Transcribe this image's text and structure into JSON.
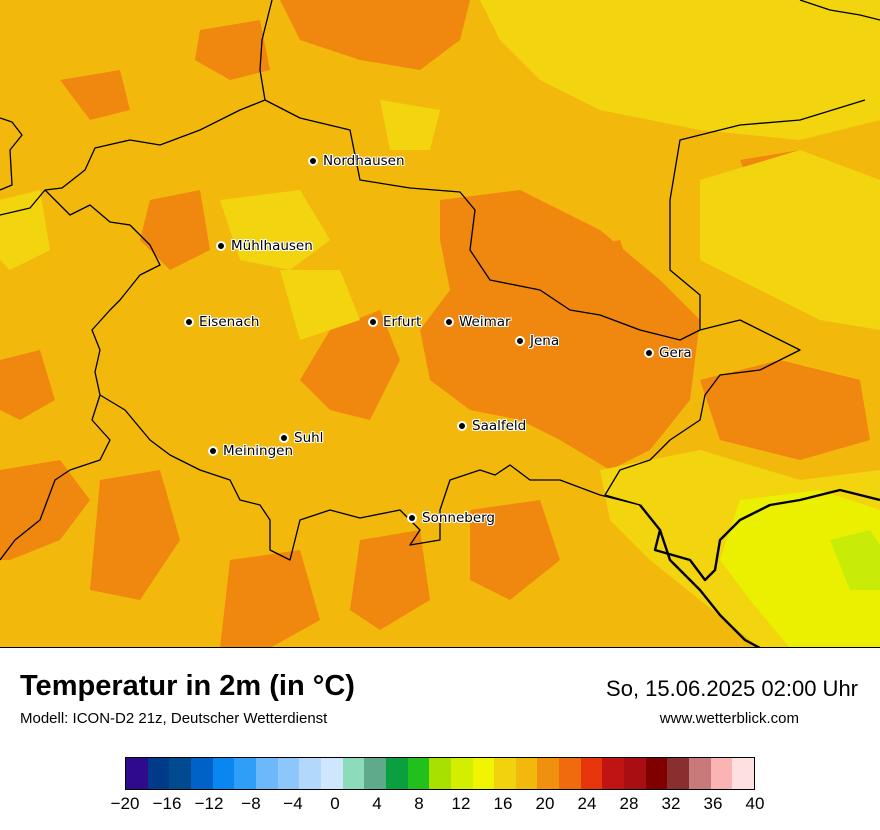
{
  "map": {
    "cities": [
      {
        "name": "Nordhausen"
      },
      {
        "name": "Mühlhausen"
      },
      {
        "name": "Eisenach"
      },
      {
        "name": "Erfurt"
      },
      {
        "name": "Weimar"
      },
      {
        "name": "Jena"
      },
      {
        "name": "Gera"
      },
      {
        "name": "Suhl"
      },
      {
        "name": "Meiningen"
      },
      {
        "name": "Saalfeld"
      },
      {
        "name": "Sonneberg"
      }
    ],
    "colors": {
      "base": "#f2b90c",
      "warm": "#f0870e",
      "cool": "#f2d50f",
      "coolest": "#eaf000",
      "border": "#000000"
    }
  },
  "header": {
    "title": "Temperatur in 2m (in °C)",
    "subtitle": "Modell: ICON-D2 21z, Deutscher Wetterdienst",
    "datetime": "So, 15.06.2025 02:00 Uhr",
    "website": "www.wetterblick.com"
  },
  "legend": {
    "ticks": [
      "−20",
      "−16",
      "−12",
      "−8",
      "−4",
      "0",
      "4",
      "8",
      "12",
      "16",
      "20",
      "24",
      "28",
      "32",
      "36",
      "40"
    ],
    "colors": [
      "#300a8c",
      "#003a8a",
      "#004a90",
      "#0062c8",
      "#0a86f0",
      "#2e9ef6",
      "#6cb8fa",
      "#8cc6fb",
      "#b2d8fc",
      "#d0e6fd",
      "#8cdcbc",
      "#5eaa8a",
      "#0aa040",
      "#22c01c",
      "#a8e000",
      "#d4ee00",
      "#f0f400",
      "#f2d20c",
      "#f2b90c",
      "#f0900e",
      "#f06a0e",
      "#e8360c",
      "#c01414",
      "#a80e12",
      "#800000",
      "#8a2f2f",
      "#c87a7a",
      "#fbb4b4",
      "#ffe0e0"
    ]
  }
}
